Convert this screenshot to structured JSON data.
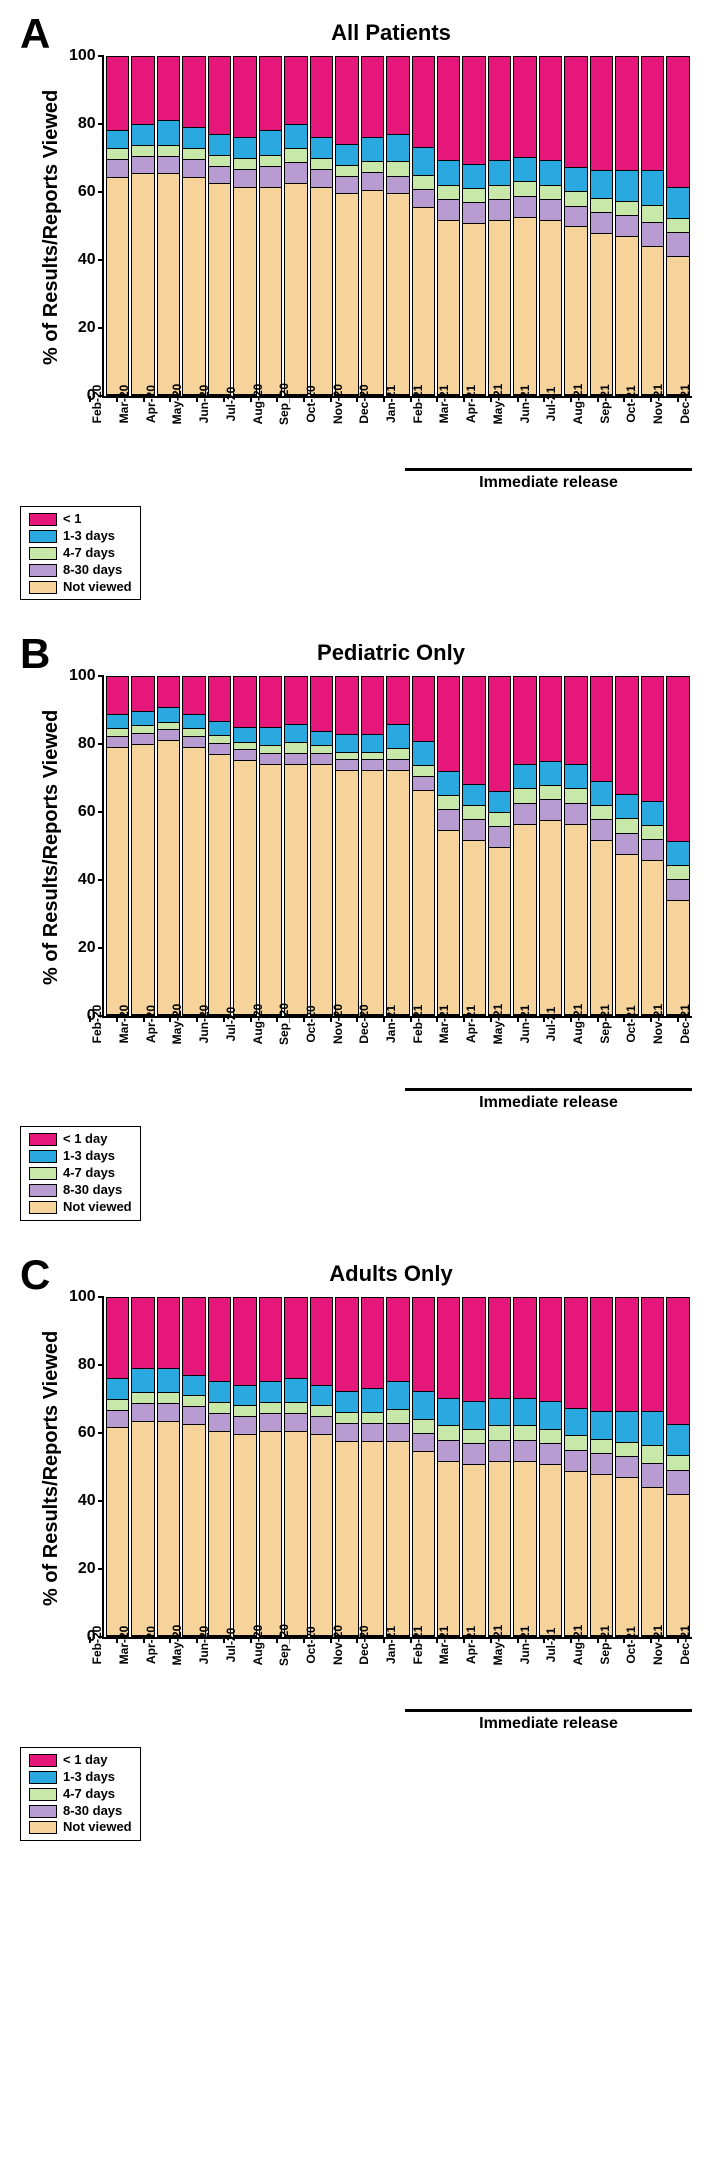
{
  "colors": {
    "lt1": "#e6177b",
    "d1_3": "#2aa8e0",
    "d4_7": "#c7e8a8",
    "d8_30": "#b89bd1",
    "notviewed": "#f5d39a",
    "border": "#000000",
    "background": "#ffffff"
  },
  "months": [
    "Feb-20",
    "Mar-20",
    "Apr-20",
    "May-20",
    "Jun-20",
    "Jul-20",
    "Aug-20",
    "Sep_20",
    "Oct-20",
    "Nov-20",
    "Dec-20",
    "Jan-21",
    "Feb-21",
    "Mar-21",
    "Apr-21",
    "May-21",
    "Jun-21",
    "Jul-21",
    "Aug-21",
    "Sep-21",
    "Oct-21",
    "Nov-21",
    "Dec-21"
  ],
  "yticks": [
    100,
    80,
    60,
    40,
    20,
    0
  ],
  "ylabel": "% of Results/Reports Viewed",
  "immediate_label": "Immediate release",
  "immediate_start_index": 12,
  "panels": [
    {
      "letter": "A",
      "title": "All Patients",
      "legend": [
        "< 1",
        "1-3 days",
        "4-7 days",
        "8-30 days",
        "Not viewed"
      ],
      "data": [
        {
          "nv": 65,
          "d8": 5,
          "d4": 3,
          "d1": 5,
          "lt": 22
        },
        {
          "nv": 66,
          "d8": 5,
          "d4": 3,
          "d1": 6,
          "lt": 20
        },
        {
          "nv": 66,
          "d8": 5,
          "d4": 3,
          "d1": 7,
          "lt": 19
        },
        {
          "nv": 65,
          "d8": 5,
          "d4": 3,
          "d1": 6,
          "lt": 21
        },
        {
          "nv": 63,
          "d8": 5,
          "d4": 3,
          "d1": 6,
          "lt": 23
        },
        {
          "nv": 62,
          "d8": 5,
          "d4": 3,
          "d1": 6,
          "lt": 24
        },
        {
          "nv": 62,
          "d8": 6,
          "d4": 3,
          "d1": 7,
          "lt": 22
        },
        {
          "nv": 63,
          "d8": 6,
          "d4": 4,
          "d1": 7,
          "lt": 20
        },
        {
          "nv": 62,
          "d8": 5,
          "d4": 3,
          "d1": 6,
          "lt": 24
        },
        {
          "nv": 60,
          "d8": 5,
          "d4": 3,
          "d1": 6,
          "lt": 26
        },
        {
          "nv": 61,
          "d8": 5,
          "d4": 3,
          "d1": 7,
          "lt": 24
        },
        {
          "nv": 60,
          "d8": 5,
          "d4": 4,
          "d1": 8,
          "lt": 23
        },
        {
          "nv": 56,
          "d8": 5,
          "d4": 4,
          "d1": 8,
          "lt": 27
        },
        {
          "nv": 52,
          "d8": 6,
          "d4": 4,
          "d1": 7,
          "lt": 31
        },
        {
          "nv": 51,
          "d8": 6,
          "d4": 4,
          "d1": 7,
          "lt": 32
        },
        {
          "nv": 52,
          "d8": 6,
          "d4": 4,
          "d1": 7,
          "lt": 31
        },
        {
          "nv": 53,
          "d8": 6,
          "d4": 4,
          "d1": 7,
          "lt": 30
        },
        {
          "nv": 52,
          "d8": 6,
          "d4": 4,
          "d1": 7,
          "lt": 31
        },
        {
          "nv": 50,
          "d8": 6,
          "d4": 4,
          "d1": 7,
          "lt": 33
        },
        {
          "nv": 48,
          "d8": 6,
          "d4": 4,
          "d1": 8,
          "lt": 34
        },
        {
          "nv": 47,
          "d8": 6,
          "d4": 4,
          "d1": 9,
          "lt": 34
        },
        {
          "nv": 44,
          "d8": 7,
          "d4": 5,
          "d1": 10,
          "lt": 34
        },
        {
          "nv": 41,
          "d8": 7,
          "d4": 4,
          "d1": 9,
          "lt": 39
        }
      ]
    },
    {
      "letter": "B",
      "title": "Pediatric Only",
      "legend": [
        "< 1 day",
        "1-3 days",
        "4-7 days",
        "8-30 days",
        "Not viewed"
      ],
      "data": [
        {
          "nv": 80,
          "d8": 3,
          "d4": 2,
          "d1": 4,
          "lt": 11
        },
        {
          "nv": 81,
          "d8": 3,
          "d4": 2,
          "d1": 4,
          "lt": 10
        },
        {
          "nv": 82,
          "d8": 3,
          "d4": 2,
          "d1": 4,
          "lt": 9
        },
        {
          "nv": 80,
          "d8": 3,
          "d4": 2,
          "d1": 4,
          "lt": 11
        },
        {
          "nv": 78,
          "d8": 3,
          "d4": 2,
          "d1": 4,
          "lt": 13
        },
        {
          "nv": 76,
          "d8": 3,
          "d4": 2,
          "d1": 4,
          "lt": 15
        },
        {
          "nv": 75,
          "d8": 3,
          "d4": 2,
          "d1": 5,
          "lt": 15
        },
        {
          "nv": 75,
          "d8": 3,
          "d4": 3,
          "d1": 5,
          "lt": 14
        },
        {
          "nv": 75,
          "d8": 3,
          "d4": 2,
          "d1": 4,
          "lt": 16
        },
        {
          "nv": 73,
          "d8": 3,
          "d4": 2,
          "d1": 5,
          "lt": 17
        },
        {
          "nv": 73,
          "d8": 3,
          "d4": 2,
          "d1": 5,
          "lt": 17
        },
        {
          "nv": 73,
          "d8": 3,
          "d4": 3,
          "d1": 7,
          "lt": 14
        },
        {
          "nv": 67,
          "d8": 4,
          "d4": 3,
          "d1": 7,
          "lt": 19
        },
        {
          "nv": 55,
          "d8": 6,
          "d4": 4,
          "d1": 7,
          "lt": 28
        },
        {
          "nv": 52,
          "d8": 6,
          "d4": 4,
          "d1": 6,
          "lt": 32
        },
        {
          "nv": 50,
          "d8": 6,
          "d4": 4,
          "d1": 6,
          "lt": 34
        },
        {
          "nv": 57,
          "d8": 6,
          "d4": 4,
          "d1": 7,
          "lt": 26
        },
        {
          "nv": 58,
          "d8": 6,
          "d4": 4,
          "d1": 7,
          "lt": 25
        },
        {
          "nv": 57,
          "d8": 6,
          "d4": 4,
          "d1": 7,
          "lt": 26
        },
        {
          "nv": 52,
          "d8": 6,
          "d4": 4,
          "d1": 7,
          "lt": 31
        },
        {
          "nv": 48,
          "d8": 6,
          "d4": 4,
          "d1": 7,
          "lt": 35
        },
        {
          "nv": 46,
          "d8": 6,
          "d4": 4,
          "d1": 7,
          "lt": 37
        },
        {
          "nv": 34,
          "d8": 6,
          "d4": 4,
          "d1": 7,
          "lt": 49
        }
      ]
    },
    {
      "letter": "C",
      "title": "Adults Only",
      "legend": [
        "< 1 day",
        "1-3 days",
        "4-7 days",
        "8-30 days",
        "Not viewed"
      ],
      "data": [
        {
          "nv": 62,
          "d8": 5,
          "d4": 3,
          "d1": 6,
          "lt": 24
        },
        {
          "nv": 64,
          "d8": 5,
          "d4": 3,
          "d1": 7,
          "lt": 21
        },
        {
          "nv": 64,
          "d8": 5,
          "d4": 3,
          "d1": 7,
          "lt": 21
        },
        {
          "nv": 63,
          "d8": 5,
          "d4": 3,
          "d1": 6,
          "lt": 23
        },
        {
          "nv": 61,
          "d8": 5,
          "d4": 3,
          "d1": 6,
          "lt": 25
        },
        {
          "nv": 60,
          "d8": 5,
          "d4": 3,
          "d1": 6,
          "lt": 26
        },
        {
          "nv": 61,
          "d8": 5,
          "d4": 3,
          "d1": 6,
          "lt": 25
        },
        {
          "nv": 61,
          "d8": 5,
          "d4": 3,
          "d1": 7,
          "lt": 24
        },
        {
          "nv": 60,
          "d8": 5,
          "d4": 3,
          "d1": 6,
          "lt": 26
        },
        {
          "nv": 58,
          "d8": 5,
          "d4": 3,
          "d1": 6,
          "lt": 28
        },
        {
          "nv": 58,
          "d8": 5,
          "d4": 3,
          "d1": 7,
          "lt": 27
        },
        {
          "nv": 58,
          "d8": 5,
          "d4": 4,
          "d1": 8,
          "lt": 25
        },
        {
          "nv": 55,
          "d8": 5,
          "d4": 4,
          "d1": 8,
          "lt": 28
        },
        {
          "nv": 52,
          "d8": 6,
          "d4": 4,
          "d1": 8,
          "lt": 30
        },
        {
          "nv": 51,
          "d8": 6,
          "d4": 4,
          "d1": 8,
          "lt": 31
        },
        {
          "nv": 52,
          "d8": 6,
          "d4": 4,
          "d1": 8,
          "lt": 30
        },
        {
          "nv": 52,
          "d8": 6,
          "d4": 4,
          "d1": 8,
          "lt": 30
        },
        {
          "nv": 51,
          "d8": 6,
          "d4": 4,
          "d1": 8,
          "lt": 31
        },
        {
          "nv": 49,
          "d8": 6,
          "d4": 4,
          "d1": 8,
          "lt": 33
        },
        {
          "nv": 48,
          "d8": 6,
          "d4": 4,
          "d1": 8,
          "lt": 34
        },
        {
          "nv": 47,
          "d8": 6,
          "d4": 4,
          "d1": 9,
          "lt": 34
        },
        {
          "nv": 44,
          "d8": 7,
          "d4": 5,
          "d1": 10,
          "lt": 34
        },
        {
          "nv": 42,
          "d8": 7,
          "d4": 4,
          "d1": 9,
          "lt": 38
        }
      ]
    }
  ]
}
